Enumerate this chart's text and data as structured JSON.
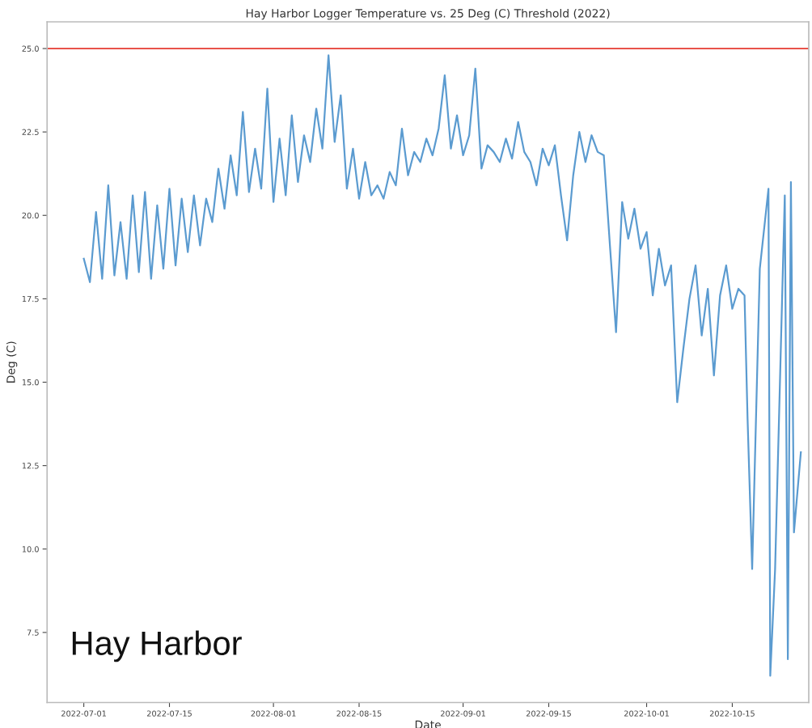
{
  "chart_data": {
    "type": "line",
    "title": "Hay Harbor Logger Temperature vs. 25 Deg (C) Threshold (2022)",
    "xlabel": "Date",
    "ylabel": "Deg (C)",
    "annotations": [
      "Hay Harbor"
    ],
    "x": [
      "2022-07-01",
      "2022-07-02",
      "2022-07-03",
      "2022-07-04",
      "2022-07-05",
      "2022-07-06",
      "2022-07-07",
      "2022-07-08",
      "2022-07-09",
      "2022-07-10",
      "2022-07-11",
      "2022-07-12",
      "2022-07-13",
      "2022-07-14",
      "2022-07-15",
      "2022-07-16",
      "2022-07-17",
      "2022-07-18",
      "2022-07-19",
      "2022-07-20",
      "2022-07-21",
      "2022-07-22",
      "2022-07-23",
      "2022-07-24",
      "2022-07-25",
      "2022-07-26",
      "2022-07-27",
      "2022-07-28",
      "2022-07-29",
      "2022-07-30",
      "2022-07-31",
      "2022-08-01",
      "2022-08-02",
      "2022-08-03",
      "2022-08-04",
      "2022-08-05",
      "2022-08-06",
      "2022-08-07",
      "2022-08-08",
      "2022-08-09",
      "2022-08-10",
      "2022-08-11",
      "2022-08-12",
      "2022-08-13",
      "2022-08-14",
      "2022-08-15",
      "2022-08-16",
      "2022-08-17",
      "2022-08-18",
      "2022-08-19",
      "2022-08-20",
      "2022-08-21",
      "2022-08-22",
      "2022-08-23",
      "2022-08-24",
      "2022-08-25",
      "2022-08-26",
      "2022-08-27",
      "2022-08-28",
      "2022-08-29",
      "2022-08-30",
      "2022-08-31",
      "2022-09-01",
      "2022-09-02",
      "2022-09-03",
      "2022-09-04",
      "2022-09-05",
      "2022-09-06",
      "2022-09-07",
      "2022-09-08",
      "2022-09-09",
      "2022-09-10",
      "2022-09-11",
      "2022-09-12",
      "2022-09-13",
      "2022-09-14",
      "2022-09-15",
      "2022-09-16",
      "2022-09-17",
      "2022-09-18",
      "2022-09-19",
      "2022-09-20",
      "2022-09-21",
      "2022-09-22",
      "2022-09-23",
      "2022-09-24",
      "2022-09-25",
      "2022-09-26",
      "2022-09-27",
      "2022-09-28",
      "2022-09-29",
      "2022-09-30",
      "2022-10-01",
      "2022-10-02",
      "2022-10-03",
      "2022-10-04",
      "2022-10-05",
      "2022-10-06",
      "2022-10-07",
      "2022-10-08",
      "2022-10-09",
      "2022-10-10",
      "2022-10-11",
      "2022-10-12",
      "2022-10-13",
      "2022-10-14",
      "2022-10-15",
      "2022-10-16",
      "2022-10-17",
      "2022-10-17T12:00",
      "2022-10-18T06:00",
      "2022-10-19T12:00",
      "2022-10-20T22:00",
      "2022-10-21T05:00",
      "2022-10-22",
      "2022-10-23T14:00",
      "2022-10-24T02:00",
      "2022-10-24T14:00",
      "2022-10-25T02:00",
      "2022-10-26T05:00"
    ],
    "series": [
      {
        "color": "#5b9bd0",
        "values": [
          18.7,
          18.0,
          20.1,
          18.1,
          20.9,
          18.2,
          19.8,
          18.1,
          20.6,
          18.3,
          20.7,
          18.1,
          20.3,
          18.4,
          20.8,
          18.5,
          20.5,
          18.9,
          20.6,
          19.1,
          20.5,
          19.8,
          21.4,
          20.2,
          21.8,
          20.6,
          23.1,
          20.7,
          22.0,
          20.8,
          23.8,
          20.4,
          22.3,
          20.6,
          23.0,
          21.0,
          22.4,
          21.6,
          23.2,
          22.0,
          24.8,
          22.2,
          23.6,
          20.8,
          22.0,
          20.5,
          21.6,
          20.6,
          20.9,
          20.5,
          21.3,
          20.9,
          22.6,
          21.2,
          21.9,
          21.6,
          22.3,
          21.8,
          22.6,
          24.2,
          22.0,
          23.0,
          21.8,
          22.4,
          24.4,
          21.4,
          22.1,
          21.9,
          21.6,
          22.3,
          21.7,
          22.8,
          21.9,
          21.6,
          20.9,
          22.0,
          21.5,
          22.1,
          20.6,
          19.25,
          21.2,
          22.5,
          21.6,
          22.4,
          21.9,
          21.8,
          19.1,
          16.5,
          20.4,
          19.3,
          20.2,
          19.0,
          19.5,
          17.6,
          19.0,
          17.9,
          18.5,
          14.4,
          16.0,
          17.5,
          18.5,
          16.4,
          17.8,
          15.2,
          17.6,
          18.5,
          17.2,
          17.8,
          17.6,
          13.9,
          9.4,
          18.4,
          20.8,
          6.2,
          9.4,
          20.6,
          6.7,
          21.0,
          10.5,
          12.9
        ]
      }
    ],
    "ref_lines": [
      {
        "axis": "y",
        "value": 25.0,
        "color": "#e8534a"
      }
    ],
    "xlim": [
      "2022-06-25",
      "2022-10-27T12:00"
    ],
    "xticks": [
      "2022-07-01",
      "2022-07-15",
      "2022-08-01",
      "2022-08-15",
      "2022-09-01",
      "2022-09-15",
      "2022-10-01",
      "2022-10-15"
    ],
    "ylim": [
      5.4,
      25.8
    ],
    "yticks": [
      7.5,
      {
        "value": 10,
        "label": "10.0"
      },
      12.5,
      {
        "value": 15,
        "label": "15.0"
      },
      17.5,
      {
        "value": 20,
        "label": "20.0"
      },
      22.5,
      {
        "value": 25,
        "label": "25.0"
      }
    ],
    "grid": false,
    "legend": false
  }
}
